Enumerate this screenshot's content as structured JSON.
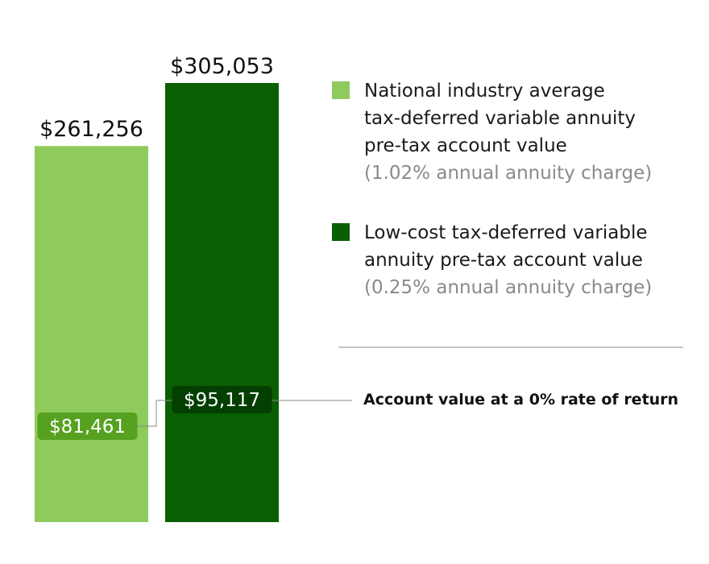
{
  "chart_data": {
    "type": "bar",
    "title": "",
    "xlabel": "",
    "ylabel": "",
    "ylim": [
      0,
      305053
    ],
    "categories": [
      "National industry average",
      "Low-cost"
    ],
    "series": [
      {
        "name": "Pre-tax account value",
        "values": [
          261256,
          305053
        ],
        "labels": [
          "$261,256",
          "$305,053"
        ]
      },
      {
        "name": "Account value at a 0% rate of return",
        "values": [
          81461,
          95117
        ],
        "labels": [
          "$81,461",
          "$95,117"
        ]
      }
    ],
    "legend": [
      {
        "lines": [
          "National industry average",
          "tax-deferred variable annuity",
          "pre-tax account value"
        ],
        "note": "(1.02% annual annuity charge)",
        "color": "#8ecb5c"
      },
      {
        "lines": [
          "Low-cost tax-deferred variable",
          "annuity pre-tax account value"
        ],
        "note": "(0.25% annual annuity charge)",
        "color": "#0a5f02"
      }
    ],
    "annotation": "Account value at a 0% rate of return",
    "colors": {
      "bar1": "#8ecb5c",
      "bar2": "#0a5f02",
      "badge1": "#56a11f",
      "badge2": "#033f00",
      "line": "#888888"
    },
    "legend_position": "right"
  }
}
